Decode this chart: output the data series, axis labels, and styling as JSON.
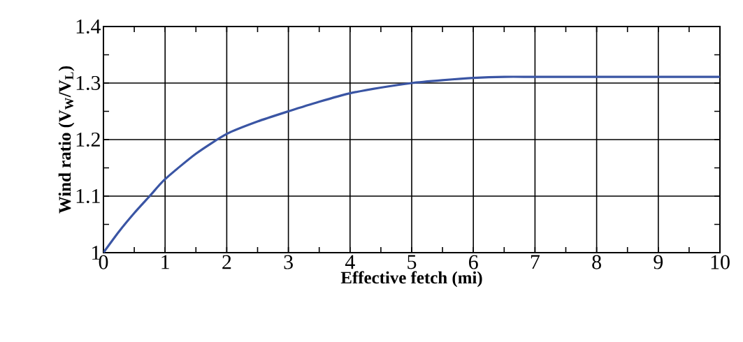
{
  "chart_data": {
    "type": "line",
    "xlabel": "Effective fetch (mi)",
    "ylabel": "Wind ratio (V$_{W}$/V$_{L}$)",
    "x": [
      0,
      0.25,
      0.5,
      0.75,
      1,
      1.5,
      2,
      2.5,
      3,
      3.5,
      4,
      4.5,
      5,
      5.5,
      6,
      6.5,
      7,
      8,
      9,
      10
    ],
    "series": [
      {
        "color": "#3a55a4",
        "values": [
          1.0,
          1.037,
          1.07,
          1.1,
          1.13,
          1.175,
          1.21,
          1.232,
          1.25,
          1.267,
          1.282,
          1.292,
          1.3,
          1.305,
          1.309,
          1.311,
          1.311,
          1.311,
          1.311,
          1.311
        ]
      }
    ],
    "xlim": [
      0,
      10
    ],
    "xticks": [
      0,
      1,
      2,
      3,
      4,
      5,
      6,
      7,
      8,
      9,
      10
    ],
    "ylim": [
      1,
      1.4
    ],
    "yticks": [
      1,
      1.1,
      1.2,
      1.3,
      1.4
    ],
    "grid": true,
    "marker": "none",
    "line_style": "solid"
  }
}
